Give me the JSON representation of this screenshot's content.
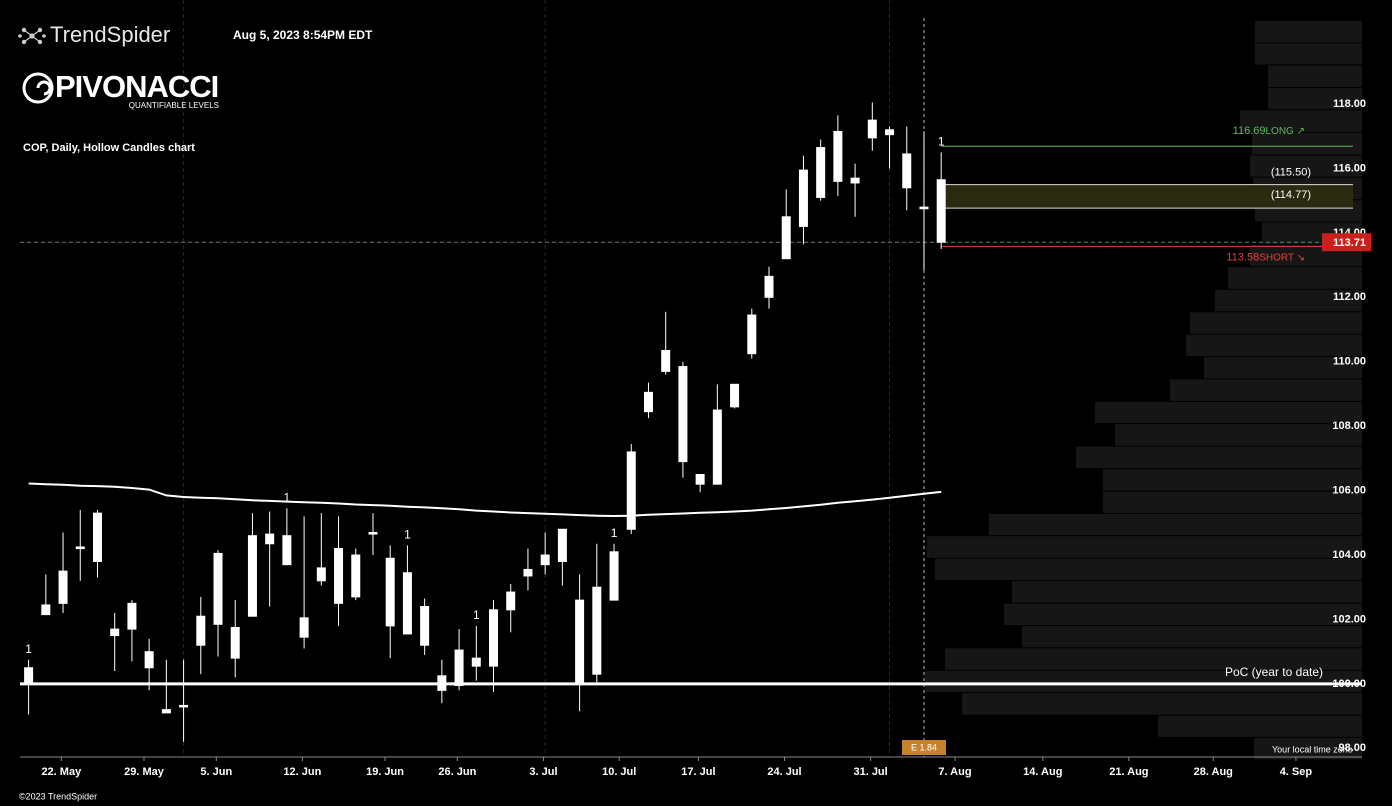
{
  "header": {
    "brand": "TrendSpider",
    "timestamp": "Aug 5, 2023 8:54PM EDT",
    "logo": "PIVONACCI",
    "logo_tagline": "QUANTIFIABLE LEVELS",
    "footer": "©2023 TrendSpider",
    "timezone_note": "Your local time zone"
  },
  "chart_data": {
    "type": "candlestick",
    "title": "COP, Daily, Hollow Candles chart",
    "color": "#ffffff",
    "x": [
      0,
      1,
      2,
      3,
      4,
      5,
      6,
      7,
      8,
      9,
      10,
      11,
      12,
      13,
      14,
      15,
      16,
      17,
      18,
      19,
      20,
      21,
      22,
      23,
      24,
      25,
      26,
      27,
      28,
      29,
      30,
      31,
      32,
      33,
      34,
      35,
      36,
      37,
      38,
      39,
      40,
      41,
      42,
      43,
      44,
      45,
      46,
      47,
      48,
      49,
      50,
      51,
      52,
      53
    ],
    "open": [
      100.0,
      102.15,
      102.5,
      104.2,
      105.3,
      101.7,
      101.7,
      100.5,
      99.2,
      99.33,
      101.2,
      101.85,
      100.8,
      102.1,
      104.35,
      104.6,
      101.45,
      103.6,
      104.2,
      102.7,
      104.65,
      103.9,
      101.55,
      102.4,
      99.8,
      99.95,
      100.55,
      100.55,
      102.3,
      103.35,
      103.7,
      104.8,
      102.6,
      100.3,
      102.6,
      104.8,
      108.45,
      109.7,
      109.85,
      106.5,
      106.2,
      108.6,
      110.25,
      112.0,
      113.2,
      114.2,
      115.1,
      117.15,
      115.55,
      116.95,
      117.05,
      116.45,
      114.75,
      115.65
    ],
    "high": [
      100.75,
      103.4,
      104.7,
      105.4,
      105.4,
      102.2,
      102.6,
      101.4,
      100.75,
      100.75,
      102.7,
      104.15,
      102.6,
      105.3,
      105.35,
      105.45,
      105.2,
      105.3,
      105.2,
      104.2,
      105.3,
      104.3,
      104.3,
      102.65,
      100.75,
      101.7,
      101.8,
      102.6,
      103.1,
      104.2,
      104.7,
      104.8,
      103.4,
      104.35,
      104.35,
      107.45,
      109.35,
      111.55,
      110.0,
      106.5,
      109.3,
      109.3,
      111.65,
      112.95,
      115.35,
      116.4,
      116.9,
      117.65,
      116.15,
      118.05,
      117.3,
      117.3,
      117.15,
      116.5
    ],
    "low": [
      99.05,
      102.2,
      102.2,
      103.2,
      103.3,
      100.4,
      100.7,
      99.8,
      99.1,
      98.2,
      100.3,
      100.85,
      100.2,
      102.1,
      102.4,
      103.7,
      101.1,
      103.05,
      101.8,
      102.6,
      104.0,
      100.8,
      101.55,
      100.9,
      99.4,
      99.8,
      100.1,
      99.75,
      101.6,
      102.9,
      103.4,
      103.05,
      99.15,
      99.95,
      102.6,
      104.65,
      108.25,
      109.6,
      106.4,
      105.95,
      106.2,
      108.55,
      110.1,
      111.65,
      113.2,
      113.65,
      115.0,
      115.15,
      114.5,
      116.55,
      116.0,
      114.7,
      112.85,
      113.5
    ],
    "close": [
      100.5,
      102.45,
      103.5,
      104.25,
      103.8,
      101.5,
      102.5,
      101.0,
      99.1,
      99.3,
      102.1,
      104.05,
      101.75,
      104.6,
      104.65,
      103.7,
      102.05,
      103.2,
      102.5,
      104.0,
      104.7,
      101.8,
      103.45,
      101.2,
      100.25,
      101.05,
      100.8,
      102.3,
      102.85,
      103.55,
      104.0,
      103.8,
      100.05,
      103.0,
      104.1,
      107.2,
      109.05,
      110.35,
      106.9,
      106.2,
      108.5,
      109.3,
      111.45,
      112.65,
      114.5,
      115.95,
      116.65,
      115.6,
      115.7,
      117.5,
      117.2,
      115.4,
      114.8,
      113.71
    ],
    "moving_average": {
      "color": "#ffffff",
      "values": [
        106.22,
        106.2,
        106.18,
        106.15,
        106.14,
        106.12,
        106.08,
        106.03,
        105.85,
        105.8,
        105.78,
        105.76,
        105.73,
        105.7,
        105.68,
        105.66,
        105.64,
        105.62,
        105.6,
        105.57,
        105.55,
        105.53,
        105.5,
        105.48,
        105.45,
        105.42,
        105.38,
        105.35,
        105.32,
        105.3,
        105.28,
        105.26,
        105.24,
        105.22,
        105.21,
        105.22,
        105.25,
        105.27,
        105.29,
        105.31,
        105.33,
        105.35,
        105.38,
        105.42,
        105.46,
        105.51,
        105.56,
        105.62,
        105.67,
        105.72,
        105.78,
        105.84,
        105.9,
        105.96
      ]
    },
    "markers": [
      {
        "x": 0,
        "text": "1"
      },
      {
        "x": 15,
        "text": "1"
      },
      {
        "x": 22,
        "text": "1"
      },
      {
        "x": 26,
        "text": "1"
      },
      {
        "x": 34,
        "text": "1"
      },
      {
        "x": 53,
        "text": "1"
      }
    ],
    "month_lines": [
      9,
      30,
      50
    ],
    "event": {
      "x": 52,
      "label": "E 1.84",
      "color": "#c8822e"
    },
    "last_price": {
      "value": 113.71,
      "color": "#c8201a"
    },
    "long_level": {
      "value": 116.69,
      "tag": "LONG ↗",
      "color": "#5cb85c"
    },
    "short_level": {
      "value": 113.58,
      "tag": "SHORT ↘",
      "color": "#e0443a"
    },
    "zone": {
      "top": 115.5,
      "bottom": 114.77,
      "top_label": "(115.50)",
      "bottom_label": "(114.77)",
      "color": "#2a2a10"
    },
    "poc": {
      "value": 100,
      "label": "PoC (year to date)"
    },
    "volume_profile": {
      "color": "#161616",
      "bins": [
        97.64,
        98.34,
        99.03,
        99.73,
        100.42,
        101.12,
        101.81,
        102.51,
        103.21,
        103.9,
        104.6,
        105.29,
        105.99,
        106.68,
        107.38,
        108.08,
        108.77,
        109.47,
        110.16,
        110.86,
        111.55,
        112.25,
        112.95,
        113.64,
        114.34,
        115.03,
        115.73,
        116.42,
        117.12,
        117.82,
        118.51,
        119.21,
        119.9,
        120.6
      ],
      "values": [
        108,
        204,
        400,
        437,
        417,
        340,
        358,
        350,
        427,
        435,
        373,
        259,
        259,
        286,
        247,
        267,
        192,
        158,
        176,
        172,
        147,
        134,
        112,
        100,
        107,
        109,
        112,
        110,
        122,
        94,
        94,
        107,
        107
      ]
    },
    "xlim": [
      -0.5,
      75
    ],
    "ylim": [
      97.73,
      121.23
    ],
    "xticks": [
      {
        "value": 1.9,
        "label": "22. May"
      },
      {
        "value": 6.7,
        "label": "29. May"
      },
      {
        "value": 10.9,
        "label": "5. Jun"
      },
      {
        "value": 15.9,
        "label": "12. Jun"
      },
      {
        "value": 20.7,
        "label": "19. Jun"
      },
      {
        "value": 24.9,
        "label": "26. Jun"
      },
      {
        "value": 29.9,
        "label": "3. Jul"
      },
      {
        "value": 34.3,
        "label": "10. Jul"
      },
      {
        "value": 38.9,
        "label": "17. Jul"
      },
      {
        "value": 43.9,
        "label": "24. Jul"
      },
      {
        "value": 48.9,
        "label": "31. Jul"
      },
      {
        "value": 53.8,
        "label": "7. Aug"
      },
      {
        "value": 58.9,
        "label": "14. Aug"
      },
      {
        "value": 63.9,
        "label": "21. Aug"
      },
      {
        "value": 68.8,
        "label": "28. Aug"
      },
      {
        "value": 73.6,
        "label": "4. Sep"
      }
    ],
    "yticks": [
      {
        "value": 98,
        "label": "98.00"
      },
      {
        "value": 100,
        "label": "100.00"
      },
      {
        "value": 102,
        "label": "102.00"
      },
      {
        "value": 104,
        "label": "104.00"
      },
      {
        "value": 106,
        "label": "106.00"
      },
      {
        "value": 108,
        "label": "108.00"
      },
      {
        "value": 110,
        "label": "110.00"
      },
      {
        "value": 112,
        "label": "112.00"
      },
      {
        "value": 114,
        "label": "114.00"
      },
      {
        "value": 116,
        "label": "116.00"
      },
      {
        "value": 118,
        "label": "118.00"
      }
    ]
  }
}
